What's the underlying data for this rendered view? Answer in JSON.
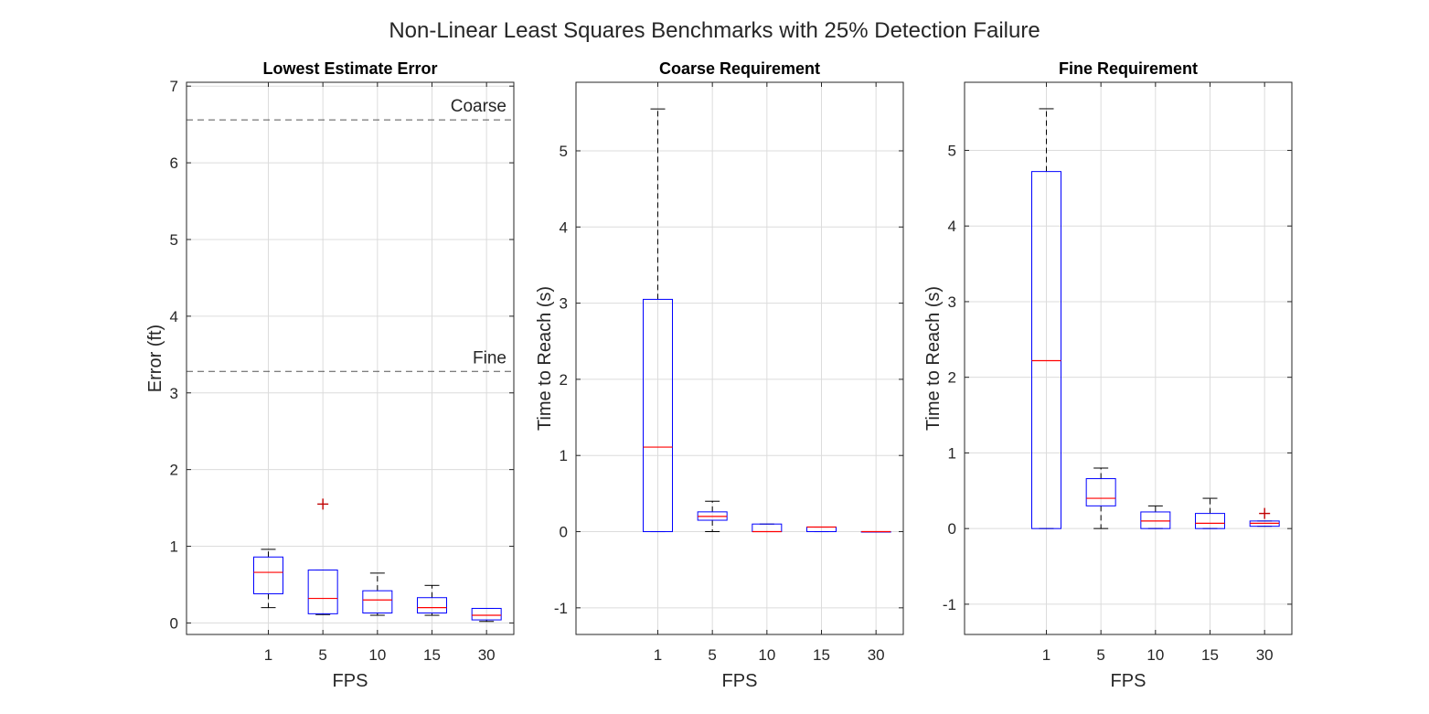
{
  "figure": {
    "title": "Non-Linear Least Squares Benchmarks with 25% Detection Failure"
  },
  "colors": {
    "box": "#0000ff",
    "median": "#ff0000",
    "whisker": "#000000",
    "outlier": "#c00000",
    "grid": "#dcdcdc",
    "axis": "#262626",
    "refline": "#555555"
  },
  "chart_data": [
    {
      "type": "box",
      "title": "Lowest Estimate Error",
      "xlabel": "FPS",
      "ylabel": "Error (ft)",
      "categories": [
        "1",
        "5",
        "10",
        "15",
        "30"
      ],
      "ylim": [
        -0.15,
        7.05
      ],
      "yticks": [
        0,
        1,
        2,
        3,
        4,
        5,
        6,
        7
      ],
      "grid": true,
      "boxes": [
        {
          "q1": 0.38,
          "median": 0.66,
          "q3": 0.86,
          "whisker_low": 0.2,
          "whisker_high": 0.96,
          "outliers": []
        },
        {
          "q1": 0.12,
          "median": 0.32,
          "q3": 0.69,
          "whisker_low": 0.11,
          "whisker_high": 0.69,
          "outliers": [
            1.55
          ]
        },
        {
          "q1": 0.13,
          "median": 0.3,
          "q3": 0.42,
          "whisker_low": 0.1,
          "whisker_high": 0.65,
          "outliers": []
        },
        {
          "q1": 0.13,
          "median": 0.2,
          "q3": 0.33,
          "whisker_low": 0.1,
          "whisker_high": 0.49,
          "outliers": []
        },
        {
          "q1": 0.04,
          "median": 0.1,
          "q3": 0.19,
          "whisker_low": 0.02,
          "whisker_high": 0.19,
          "outliers": []
        }
      ],
      "reference_lines": [
        {
          "y": 6.56,
          "label": "Coarse"
        },
        {
          "y": 3.28,
          "label": "Fine"
        }
      ]
    },
    {
      "type": "box",
      "title": "Coarse Requirement",
      "xlabel": "FPS",
      "ylabel": "Time to Reach (s)",
      "categories": [
        "1",
        "5",
        "10",
        "15",
        "30"
      ],
      "ylim": [
        -1.35,
        5.9
      ],
      "yticks": [
        -1,
        0,
        1,
        2,
        3,
        4,
        5
      ],
      "grid": true,
      "boxes": [
        {
          "q1": 0,
          "median": 1.11,
          "q3": 3.05,
          "whisker_low": 0,
          "whisker_high": 5.55,
          "outliers": []
        },
        {
          "q1": 0.15,
          "median": 0.2,
          "q3": 0.26,
          "whisker_low": 0,
          "whisker_high": 0.4,
          "outliers": []
        },
        {
          "q1": 0,
          "median": 0,
          "q3": 0.1,
          "whisker_low": 0,
          "whisker_high": 0.1,
          "outliers": []
        },
        {
          "q1": 0,
          "median": 0.06,
          "q3": 0.06,
          "whisker_low": 0,
          "whisker_high": 0.06,
          "outliers": []
        },
        {
          "q1": 0,
          "median": 0,
          "q3": 0,
          "whisker_low": 0,
          "whisker_high": 0,
          "outliers": []
        }
      ]
    },
    {
      "type": "box",
      "title": "Fine Requirement",
      "xlabel": "FPS",
      "ylabel": "Time to Reach (s)",
      "categories": [
        "1",
        "5",
        "10",
        "15",
        "30"
      ],
      "ylim": [
        -1.4,
        5.9
      ],
      "yticks": [
        -1,
        0,
        1,
        2,
        3,
        4,
        5
      ],
      "grid": true,
      "boxes": [
        {
          "q1": 0,
          "median": 2.22,
          "q3": 4.72,
          "whisker_low": 0,
          "whisker_high": 5.55,
          "outliers": []
        },
        {
          "q1": 0.3,
          "median": 0.4,
          "q3": 0.66,
          "whisker_low": 0,
          "whisker_high": 0.8,
          "outliers": []
        },
        {
          "q1": 0,
          "median": 0.1,
          "q3": 0.22,
          "whisker_low": 0,
          "whisker_high": 0.3,
          "outliers": []
        },
        {
          "q1": 0,
          "median": 0.07,
          "q3": 0.2,
          "whisker_low": 0,
          "whisker_high": 0.4,
          "outliers": []
        },
        {
          "q1": 0.03,
          "median": 0.07,
          "q3": 0.1,
          "whisker_low": 0.03,
          "whisker_high": 0.1,
          "outliers": [
            0.2
          ]
        }
      ]
    }
  ]
}
